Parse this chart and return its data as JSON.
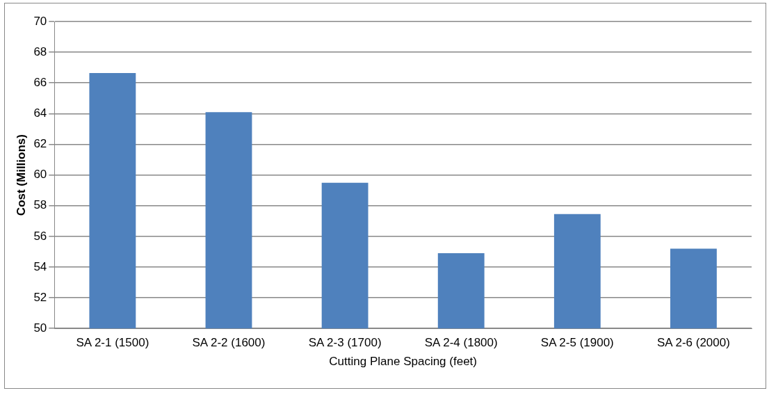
{
  "chart_data": {
    "type": "bar",
    "xlabel": "Cutting Plane Spacing (feet)",
    "ylabel": "Cost (Millions)",
    "categories": [
      "SA 2-1 (1500)",
      "SA 2-2 (1600)",
      "SA 2-3 (1700)",
      "SA 2-4 (1800)",
      "SA 2-5 (1900)",
      "SA 2-6 (2000)"
    ],
    "values": [
      66.65,
      64.1,
      59.5,
      54.9,
      57.45,
      55.2
    ],
    "color": "#4f81bd",
    "ylim": [
      50,
      70
    ],
    "yticks": [
      50,
      52,
      54,
      56,
      58,
      60,
      62,
      64,
      66,
      68,
      70
    ],
    "grid": "y",
    "legend": false
  }
}
